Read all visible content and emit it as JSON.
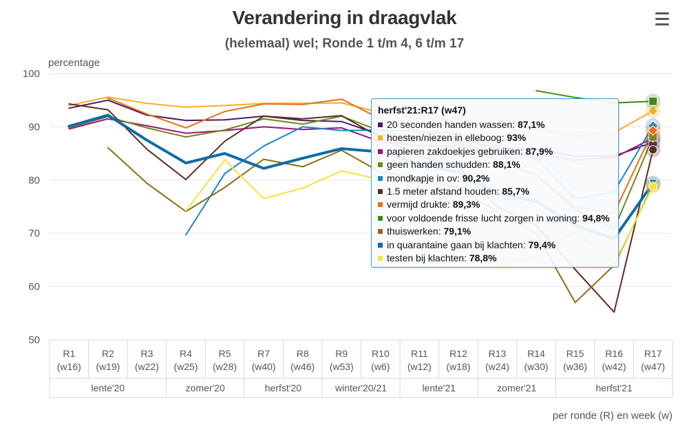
{
  "title": "Verandering in draagvlak",
  "subtitle": "(helemaal) wel; Ronde 1 t/m 4, 6 t/m 17",
  "menu_icon": "hamburger-menu-icon",
  "chart_data": {
    "type": "line",
    "title": "Verandering in draagvlak",
    "subtitle": "(helemaal) wel; Ronde 1 t/m 4, 6 t/m 17",
    "ylabel": "percentage",
    "xlabel": "per ronde (R) en week (w)",
    "ylim": [
      50,
      100
    ],
    "yticks": [
      50,
      60,
      70,
      80,
      90,
      100
    ],
    "grid": true,
    "categories": [
      {
        "round": "R1",
        "week": "(w16)"
      },
      {
        "round": "R2",
        "week": "(w19)"
      },
      {
        "round": "R3",
        "week": "(w22)"
      },
      {
        "round": "R4",
        "week": "(w25)"
      },
      {
        "round": "R5",
        "week": "(w28)"
      },
      {
        "round": "R7",
        "week": "(w40)"
      },
      {
        "round": "R8",
        "week": "(w46)"
      },
      {
        "round": "R9",
        "week": "(w53)"
      },
      {
        "round": "R10",
        "week": "(w6)"
      },
      {
        "round": "R11",
        "week": "(w12)"
      },
      {
        "round": "R12",
        "week": "(w18)"
      },
      {
        "round": "R13",
        "week": "(w24)"
      },
      {
        "round": "R14",
        "week": "(w30)"
      },
      {
        "round": "R15",
        "week": "(w36)"
      },
      {
        "round": "R16",
        "week": "(w42)"
      },
      {
        "round": "R17",
        "week": "(w47)"
      }
    ],
    "category_groups": [
      {
        "label": "lente'20",
        "span": 3
      },
      {
        "label": "zomer'20",
        "span": 2
      },
      {
        "label": "herfst'20",
        "span": 2
      },
      {
        "label": "winter'20/21",
        "span": 2
      },
      {
        "label": "lente'21",
        "span": 2
      },
      {
        "label": "zomer'21",
        "span": 2
      },
      {
        "label": "herfst'21",
        "span": 3
      }
    ],
    "series": [
      {
        "name": "20 seconden handen wassen",
        "color": "#4b1a68",
        "marker": "square",
        "values": [
          93.5,
          95,
          92.2,
          91.2,
          91.3,
          92,
          91.2,
          91,
          88.5,
          87.8,
          87.8,
          86,
          85.8,
          84.5,
          84.5,
          87.1
        ]
      },
      {
        "name": "hoesten/niezen in elleboog",
        "color": "#f9ae20",
        "marker": "diamond",
        "values": [
          94,
          95.6,
          94.4,
          93.7,
          94,
          94.4,
          94.4,
          94.5,
          92.7,
          91.5,
          91.5,
          90.2,
          89.8,
          88.2,
          88.9,
          93
        ]
      },
      {
        "name": "papieren zakdoekjes gebruiken",
        "color": "#a0127a",
        "marker": "triangle-down",
        "values": [
          89.6,
          91.5,
          90.2,
          88.8,
          89.3,
          90,
          89.5,
          89.8,
          87.2,
          86.5,
          86.2,
          85.5,
          84.8,
          83.8,
          84.2,
          87.9
        ]
      },
      {
        "name": "geen handen schudden",
        "color": "#6b8a1c",
        "marker": "square",
        "values": [
          89.8,
          91.9,
          89.8,
          88.1,
          89.4,
          91.5,
          90.5,
          92,
          89.2,
          88,
          87.2,
          83.5,
          81,
          74.5,
          70.8,
          88.1
        ]
      },
      {
        "name": "mondkapje in ov",
        "color": "#1686c7",
        "marker": "diamond",
        "values": [
          null,
          null,
          null,
          69.7,
          81.2,
          86.4,
          90,
          89.3,
          89.4,
          89.1,
          88.8,
          86.5,
          84,
          76.5,
          77.8,
          90.2
        ]
      },
      {
        "name": "1.5 meter afstand houden",
        "color": "#5a2d20",
        "marker": "circle",
        "values": [
          94.3,
          93.2,
          85.8,
          80.1,
          87.3,
          92,
          91.5,
          92.1,
          88,
          84.5,
          82.5,
          75,
          71.5,
          63.2,
          55.2,
          85.7
        ]
      },
      {
        "name": "vermijd drukte",
        "color": "#e87010",
        "marker": "diamond",
        "values": [
          null,
          95.4,
          92.4,
          89.8,
          92.9,
          94.3,
          94.2,
          95.2,
          91.5,
          89,
          88,
          83.8,
          81,
          75,
          73.8,
          89.3
        ]
      },
      {
        "name": "voor voldoende frisse lucht zorgen in woning",
        "color": "#3c8a14",
        "marker": "square",
        "values": [
          null,
          null,
          null,
          null,
          null,
          null,
          null,
          null,
          null,
          null,
          null,
          null,
          96.8,
          95.5,
          94.5,
          94.8
        ]
      },
      {
        "name": "thuiswerken",
        "color": "#8a6e12",
        "marker": "triangle",
        "values": [
          null,
          86.1,
          79.4,
          74.1,
          78.6,
          83.9,
          82.5,
          85.6,
          81.5,
          80.2,
          78.5,
          74,
          70,
          57,
          64,
          79.1
        ]
      },
      {
        "name": "in quarantaine gaan bij klachten",
        "color": "#0e6ca6",
        "marker": "triangle-down",
        "values": [
          90.1,
          92.2,
          87.5,
          83.2,
          85,
          82.2,
          84.1,
          85.9,
          85.3,
          83,
          81.5,
          77.5,
          76,
          71.5,
          69,
          79.4
        ]
      },
      {
        "name": "testen bij klachten",
        "color": "#f5e33a",
        "marker": "circle",
        "values": [
          null,
          null,
          null,
          74.2,
          83.8,
          76.5,
          78.5,
          81.7,
          80.1,
          78.5,
          77,
          64.2,
          65.5,
          70.4,
          64.3,
          78.8
        ]
      }
    ],
    "tooltip": {
      "header": "herfst'21:R17 (w47)",
      "rows": [
        {
          "label": "20 seconden handen wassen: ",
          "value": "87,1%",
          "color": "#4b1a68"
        },
        {
          "label": "hoesten/niezen in elleboog: ",
          "value": "93%",
          "color": "#f9ae20"
        },
        {
          "label": "papieren zakdoekjes gebruiken: ",
          "value": "87,9%",
          "color": "#a0127a"
        },
        {
          "label": "geen handen schudden: ",
          "value": "88,1%",
          "color": "#6b8a1c"
        },
        {
          "label": "mondkapje in ov: ",
          "value": "90,2%",
          "color": "#1686c7"
        },
        {
          "label": "1.5 meter afstand houden: ",
          "value": "85,7%",
          "color": "#5a2d20"
        },
        {
          "label": "vermijd drukte: ",
          "value": "89,3%",
          "color": "#e87010"
        },
        {
          "label": "voor voldoende frisse lucht zorgen in woning: ",
          "value": "94,8%",
          "color": "#3c8a14"
        },
        {
          "label": "thuiswerken: ",
          "value": "79,1%",
          "color": "#8a6e12"
        },
        {
          "label": "in quarantaine gaan bij klachten: ",
          "value": "79,4%",
          "color": "#0e6ca6"
        },
        {
          "label": "testen bij klachten: ",
          "value": "78,8%",
          "color": "#f5e33a"
        }
      ]
    }
  }
}
